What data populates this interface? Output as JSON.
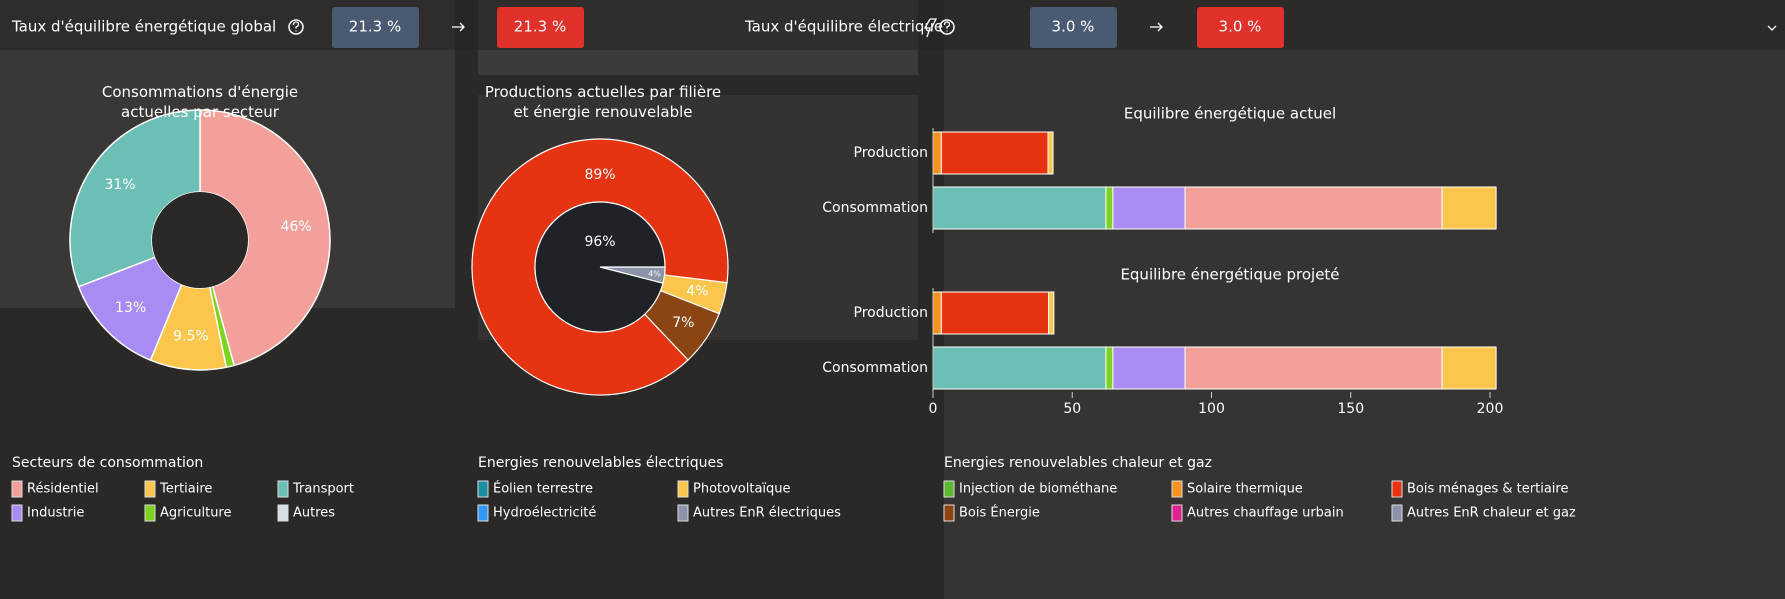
{
  "header": {
    "global": {
      "label": "Taux d'équilibre énergétique global",
      "current": "21.3 %",
      "projected": "21.3 %"
    },
    "electric": {
      "label": "Taux d'équilibre électrique",
      "current": "3.0 %",
      "projected": "3.0 %"
    }
  },
  "legends": [
    {
      "title": "Secteurs de consommation",
      "items": [
        {
          "name": "Résidentiel",
          "color": "#f4a09a"
        },
        {
          "name": "Tertiaire",
          "color": "#fcc64c"
        },
        {
          "name": "Transport",
          "color": "#6bbfb5"
        },
        {
          "name": "Industrie",
          "color": "#a98bf4"
        },
        {
          "name": "Agriculture",
          "color": "#7ed321"
        },
        {
          "name": "Autres",
          "color": "#d8dce6"
        }
      ]
    },
    {
      "title": "Energies renouvelables électriques",
      "items": [
        {
          "name": "Éolien terrestre",
          "color": "#1a8fa0"
        },
        {
          "name": "Photovoltaïque",
          "color": "#fcc64c"
        },
        {
          "name": "Hydroélectricité",
          "color": "#3399ff"
        },
        {
          "name": "Autres EnR électriques",
          "color": "#8a93a8"
        }
      ]
    },
    {
      "title": "Energies renouvelables chaleur et gaz",
      "items": [
        {
          "name": "Injection de biométhane",
          "color": "#5cb82e"
        },
        {
          "name": "Solaire thermique",
          "color": "#f7931e"
        },
        {
          "name": "Bois ménages & tertiaire",
          "color": "#e63312"
        },
        {
          "name": "Bois Énergie",
          "color": "#8b4513"
        },
        {
          "name": "Autres chauffage urbain",
          "color": "#e0208f"
        },
        {
          "name": "Autres EnR chaleur et gaz",
          "color": "#8a93a8"
        }
      ]
    }
  ],
  "chart_data": [
    {
      "type": "donut",
      "title": "Consommations d'énergie actuelles par secteur",
      "series": [
        {
          "color": "#f4a09a",
          "value": 46,
          "value_label": "46%"
        },
        {
          "color": "#7ed321",
          "value": 1
        },
        {
          "color": "#fcc64c",
          "value": 9.5,
          "value_label": "9.5%"
        },
        {
          "color": "#a98bf4",
          "value": 13,
          "value_label": "13%"
        },
        {
          "color": "#6bbfb5",
          "value": 31,
          "value_label": "31%"
        }
      ]
    },
    {
      "type": "nested-pie",
      "title": "Productions actuelles par filière et énergie renouvelable",
      "outer": [
        {
          "color": "#fcc64c",
          "value": 4,
          "value_label": "4%"
        },
        {
          "color": "#8b4513",
          "value": 7,
          "value_label": "7%"
        },
        {
          "color": "#e63312",
          "value": 89,
          "value_label": "89%"
        }
      ],
      "inner": [
        {
          "color": "#8a93a8",
          "value": 4,
          "value_label": "4%"
        },
        {
          "color": "#1f2226",
          "value": 96,
          "value_label": "96%"
        }
      ]
    },
    {
      "type": "stacked-hbar",
      "title": "Equilibre énergétique actuel",
      "bars": [
        {
          "category": "Production",
          "segments": [
            {
              "color": "#f7931e",
              "value": 3
            },
            {
              "color": "#e63312",
              "value": 38.3
            },
            {
              "color": "#fcc64c",
              "value": 1.8
            }
          ]
        },
        {
          "category": "Consommation",
          "segments": [
            {
              "color": "#6bbfb5",
              "value": 62.1
            },
            {
              "color": "#7ed321",
              "value": 2.5
            },
            {
              "color": "#a98bf4",
              "value": 25.9
            },
            {
              "color": "#f4a09a",
              "value": 92.3
            },
            {
              "color": "#fcc64c",
              "value": 19.4
            }
          ]
        }
      ],
      "xlim": [
        0,
        205
      ]
    },
    {
      "type": "stacked-hbar",
      "title": "Equilibre énergétique projeté",
      "bars": [
        {
          "category": "Production",
          "segments": [
            {
              "color": "#f7931e",
              "value": 3
            },
            {
              "color": "#e63312",
              "value": 38.5
            },
            {
              "color": "#fcc64c",
              "value": 1.9
            }
          ]
        },
        {
          "category": "Consommation",
          "segments": [
            {
              "color": "#6bbfb5",
              "value": 62.1
            },
            {
              "color": "#7ed321",
              "value": 2.5
            },
            {
              "color": "#a98bf4",
              "value": 25.9
            },
            {
              "color": "#f4a09a",
              "value": 92.3
            },
            {
              "color": "#fcc64c",
              "value": 19.4
            }
          ]
        }
      ],
      "xlim": [
        0,
        205
      ],
      "xticks": [
        0,
        50,
        100,
        150,
        200
      ]
    }
  ]
}
